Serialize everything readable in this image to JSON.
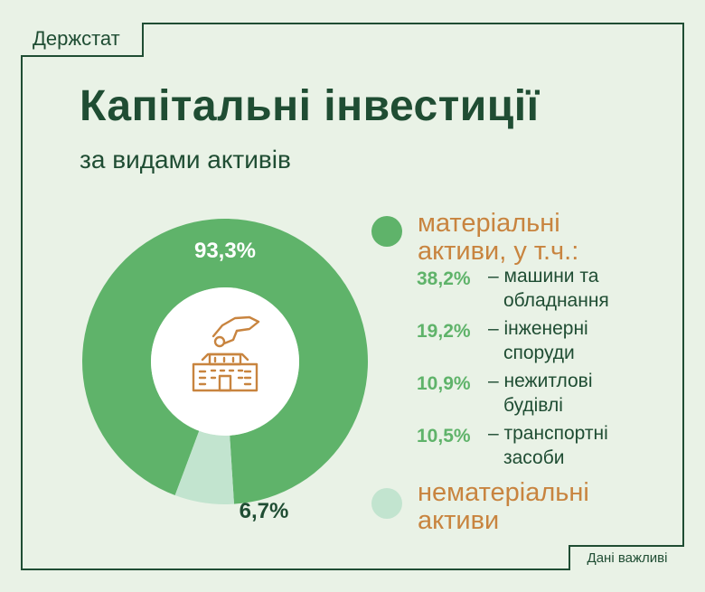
{
  "brand": "Держстат",
  "title": "Капітальні інвестиції",
  "subtitle": "за видами активів",
  "footer": "Дані важливі",
  "colors": {
    "primary": "#5fb36a",
    "secondary": "#c2e4cf",
    "accent": "#c8843f",
    "text": "#1f4d33",
    "background": "#e9f2e6"
  },
  "center_icon": "hand-coin-building-icon",
  "chart_data": {
    "type": "pie",
    "donut": true,
    "slices": [
      {
        "name": "матеріальні активи, у т.ч.:",
        "value": 93.3,
        "label": "93,3%"
      },
      {
        "name": "нематеріальні активи",
        "value": 6.7,
        "label": "6,7%"
      }
    ],
    "breakdown": [
      {
        "value_label": "38,2%",
        "text": "– машини та обладнання",
        "line1": "– машини та",
        "line2": "обладнання"
      },
      {
        "value_label": "19,2%",
        "text": "– інженерні споруди",
        "line1": "– інженерні",
        "line2": "споруди"
      },
      {
        "value_label": "10,9%",
        "text": "– нежитлові будівлі",
        "line1": "– нежитлові",
        "line2": "будівлі"
      },
      {
        "value_label": "10,5%",
        "text": "– транспортні засоби",
        "line1": "– транспортні",
        "line2": "засоби"
      }
    ],
    "legend": {
      "material_line1": "матеріальні",
      "material_line2": "активи, у т.ч.:",
      "intangible_line1": "нематеріальні",
      "intangible_line2": "активи"
    }
  }
}
